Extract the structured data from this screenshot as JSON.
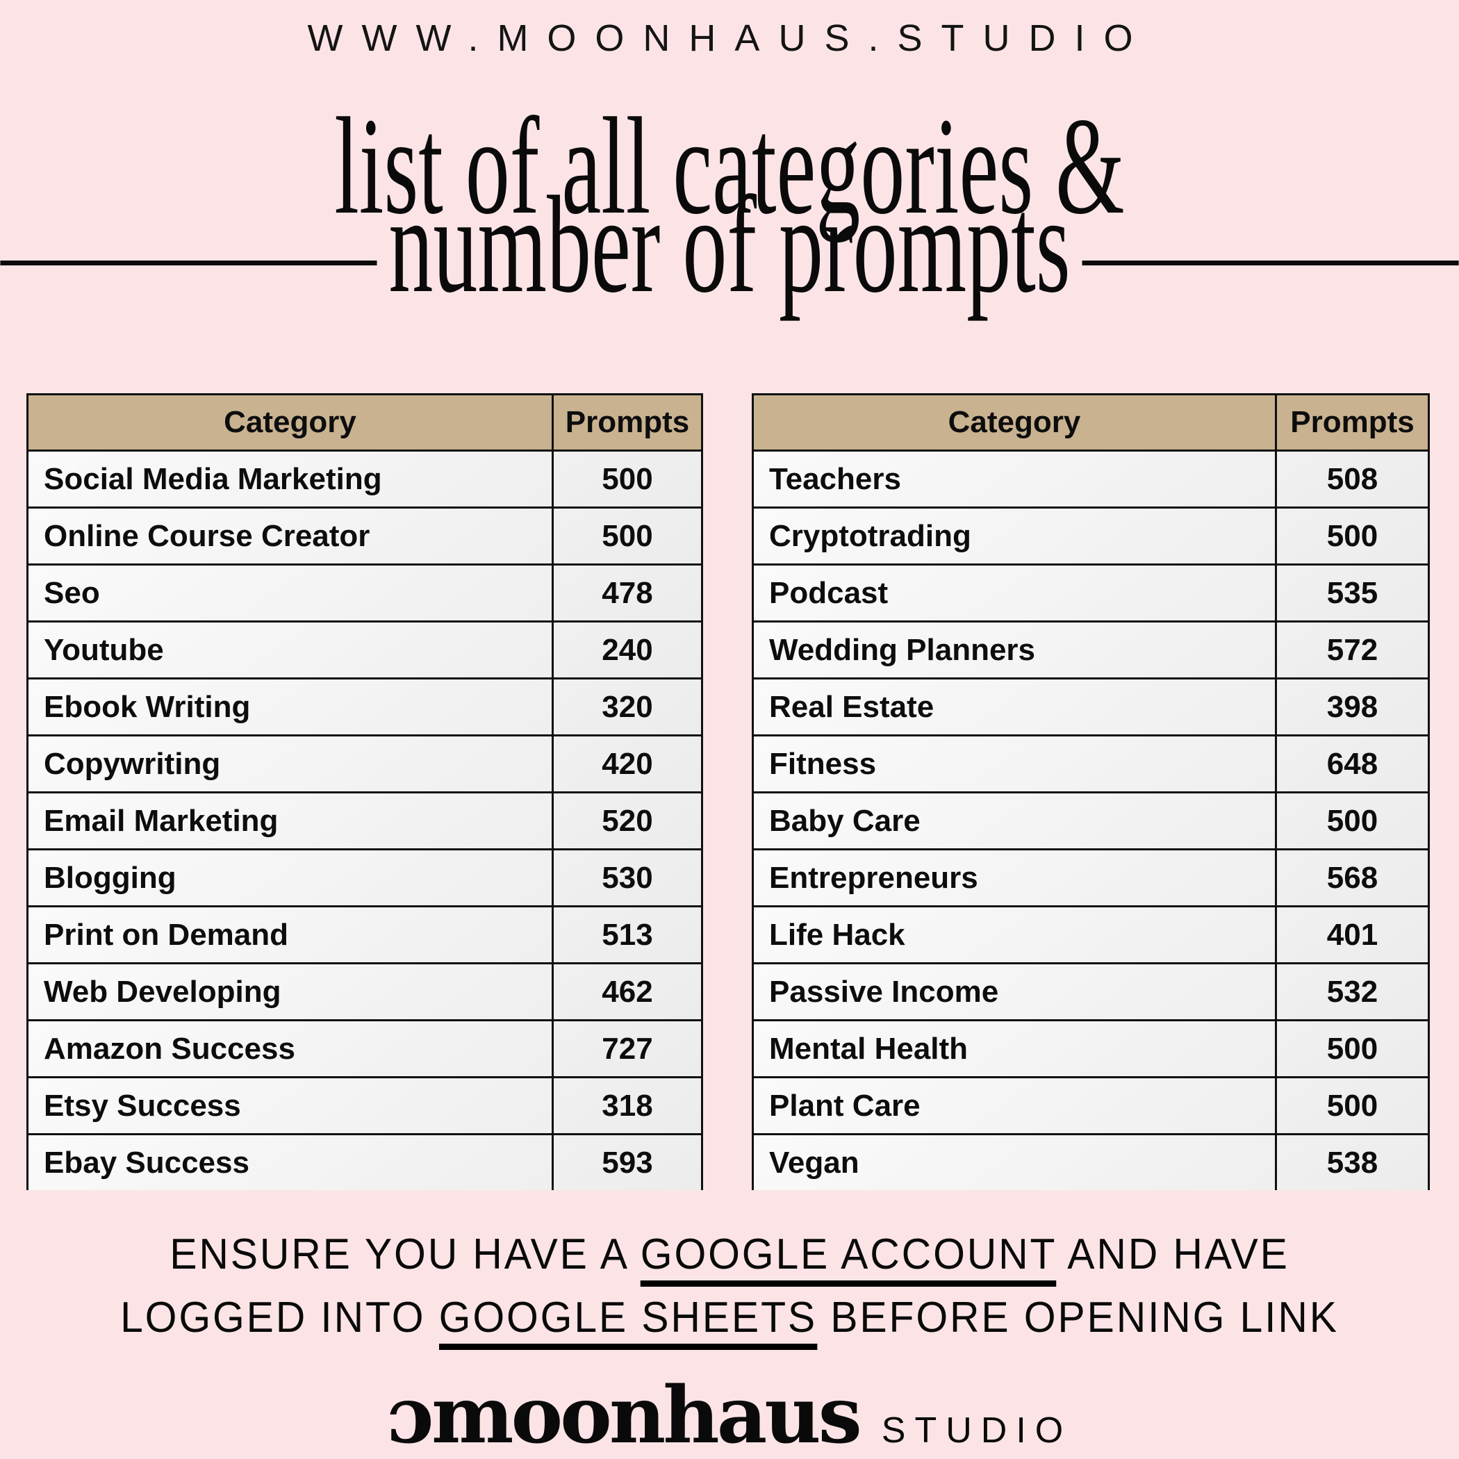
{
  "site": {
    "url": "WWW.MOONHAUS.STUDIO"
  },
  "title": {
    "line1": "list of all categories &",
    "line2": "number of prompts"
  },
  "table_left": {
    "header": {
      "category": "Category",
      "prompts": "Prompts"
    },
    "rows": [
      [
        "Social Media Marketing",
        "500"
      ],
      [
        "Online Course Creator",
        "500"
      ],
      [
        "Seo",
        "478"
      ],
      [
        "Youtube",
        "240"
      ],
      [
        "Ebook Writing",
        "320"
      ],
      [
        "Copywriting",
        "420"
      ],
      [
        "Email Marketing",
        "520"
      ],
      [
        "Blogging",
        "530"
      ],
      [
        "Print on Demand",
        "513"
      ],
      [
        "Web Developing",
        "462"
      ],
      [
        "Amazon Success",
        "727"
      ],
      [
        "Etsy Success",
        "318"
      ],
      [
        "Ebay Success",
        "593"
      ]
    ]
  },
  "table_right": {
    "header": {
      "category": "Category",
      "prompts": "Prompts"
    },
    "rows": [
      [
        "Teachers",
        "508"
      ],
      [
        "Cryptotrading",
        "500"
      ],
      [
        "Podcast",
        "535"
      ],
      [
        "Wedding Planners",
        "572"
      ],
      [
        "Real Estate",
        "398"
      ],
      [
        "Fitness",
        "648"
      ],
      [
        "Baby Care",
        "500"
      ],
      [
        "Entrepreneurs",
        "568"
      ],
      [
        "Life Hack",
        "401"
      ],
      [
        "Passive Income",
        "532"
      ],
      [
        "Mental Health",
        "500"
      ],
      [
        "Plant Care",
        "500"
      ],
      [
        "Vegan",
        "538"
      ]
    ]
  },
  "note": {
    "line1": [
      {
        "text": "ENSURE YOU HAVE A ",
        "underline": false
      },
      {
        "text": "GOOGLE ACCOUNT",
        "underline": true
      },
      {
        "text": " AND HAVE",
        "underline": false
      }
    ],
    "line2": [
      {
        "text": "LOGGED INTO ",
        "underline": false
      },
      {
        "text": "GOOGLE SHEETS",
        "underline": true
      },
      {
        "text": " BEFORE OPENING LINK",
        "underline": false
      }
    ]
  },
  "logo": {
    "mark": "ɔ",
    "name": "moonhaus",
    "suffix": "STUDIO"
  },
  "colors": {
    "background": "#fce4e6",
    "header_fill": "#c9b290",
    "row_fill": "#f4f4f4",
    "border": "#101010",
    "text": "#000000"
  }
}
